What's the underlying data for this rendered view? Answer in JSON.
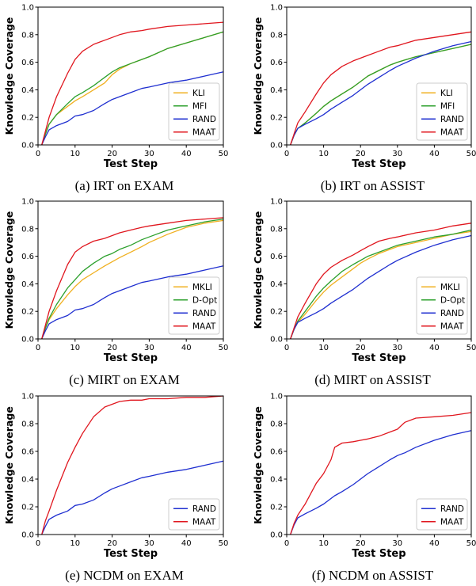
{
  "colors": {
    "KLI": "#f0b020",
    "MKLI": "#f0b020",
    "MFI": "#2ca02c",
    "D-Opt": "#2ca02c",
    "RAND": "#1f2fd0",
    "MAAT": "#e0161e"
  },
  "chart_data": [
    {
      "type": "line",
      "caption": "(a) IRT on EXAM",
      "xlabel": "Test Step",
      "ylabel": "Knowledge Coverage",
      "xlim": [
        0,
        50
      ],
      "ylim": [
        0,
        1.0
      ],
      "xticks": [
        "0",
        "10",
        "20",
        "30",
        "40",
        "50"
      ],
      "yticks": [
        "0.0",
        "0.2",
        "0.4",
        "0.6",
        "0.8",
        "1.0"
      ],
      "legend_position": "lower-right",
      "x": [
        1,
        2,
        3,
        5,
        8,
        10,
        12,
        15,
        18,
        20,
        22,
        25,
        28,
        30,
        35,
        40,
        45,
        50
      ],
      "series": [
        {
          "name": "KLI",
          "values": [
            0,
            0.08,
            0.15,
            0.22,
            0.28,
            0.32,
            0.35,
            0.4,
            0.45,
            0.51,
            0.55,
            0.59,
            0.62,
            0.64,
            0.7,
            0.74,
            0.78,
            0.82
          ]
        },
        {
          "name": "MFI",
          "values": [
            0,
            0.08,
            0.15,
            0.22,
            0.3,
            0.35,
            0.38,
            0.43,
            0.49,
            0.53,
            0.56,
            0.59,
            0.62,
            0.64,
            0.7,
            0.74,
            0.78,
            0.82
          ]
        },
        {
          "name": "RAND",
          "values": [
            0,
            0.06,
            0.11,
            0.14,
            0.17,
            0.21,
            0.22,
            0.25,
            0.3,
            0.33,
            0.35,
            0.38,
            0.41,
            0.42,
            0.45,
            0.47,
            0.5,
            0.53
          ]
        },
        {
          "name": "MAAT",
          "values": [
            0,
            0.1,
            0.2,
            0.35,
            0.52,
            0.62,
            0.68,
            0.73,
            0.76,
            0.78,
            0.8,
            0.82,
            0.83,
            0.84,
            0.86,
            0.87,
            0.88,
            0.89
          ]
        }
      ]
    },
    {
      "type": "line",
      "caption": "(b) IRT on ASSIST",
      "xlabel": "Test Step",
      "ylabel": "Knowledge Coverage",
      "xlim": [
        0,
        50
      ],
      "ylim": [
        0,
        1.0
      ],
      "xticks": [
        "0",
        "10",
        "20",
        "30",
        "40",
        "50"
      ],
      "yticks": [
        "0.0",
        "0.2",
        "0.4",
        "0.6",
        "0.8",
        "1.0"
      ],
      "legend_position": "lower-right",
      "x": [
        1,
        2,
        3,
        5,
        8,
        10,
        12,
        15,
        18,
        20,
        22,
        25,
        28,
        30,
        35,
        40,
        45,
        50
      ],
      "series": [
        {
          "name": "KLI",
          "values": [
            0,
            0.07,
            0.12,
            0.16,
            0.23,
            0.28,
            0.32,
            0.37,
            0.42,
            0.46,
            0.5,
            0.54,
            0.58,
            0.6,
            0.64,
            0.67,
            0.7,
            0.73
          ]
        },
        {
          "name": "MFI",
          "values": [
            0,
            0.07,
            0.12,
            0.16,
            0.23,
            0.28,
            0.32,
            0.37,
            0.42,
            0.46,
            0.5,
            0.54,
            0.58,
            0.6,
            0.64,
            0.67,
            0.7,
            0.73
          ]
        },
        {
          "name": "RAND",
          "values": [
            0,
            0.07,
            0.12,
            0.15,
            0.19,
            0.22,
            0.26,
            0.31,
            0.36,
            0.4,
            0.44,
            0.49,
            0.54,
            0.57,
            0.63,
            0.68,
            0.72,
            0.75
          ]
        },
        {
          "name": "MAAT",
          "values": [
            0,
            0.08,
            0.16,
            0.24,
            0.37,
            0.45,
            0.51,
            0.57,
            0.61,
            0.63,
            0.65,
            0.68,
            0.71,
            0.72,
            0.76,
            0.78,
            0.8,
            0.82
          ]
        }
      ]
    },
    {
      "type": "line",
      "caption": "(c) MIRT on EXAM",
      "xlabel": "Test Step",
      "ylabel": "Knowledge Coverage",
      "xlim": [
        0,
        50
      ],
      "ylim": [
        0,
        1.0
      ],
      "xticks": [
        "0",
        "10",
        "20",
        "30",
        "40",
        "50"
      ],
      "yticks": [
        "0.0",
        "0.2",
        "0.4",
        "0.6",
        "0.8",
        "1.0"
      ],
      "legend_position": "lower-right",
      "x": [
        1,
        2,
        3,
        5,
        8,
        10,
        12,
        15,
        18,
        20,
        22,
        25,
        28,
        30,
        35,
        40,
        45,
        50
      ],
      "series": [
        {
          "name": "MKLI",
          "values": [
            0,
            0.08,
            0.14,
            0.22,
            0.32,
            0.38,
            0.43,
            0.48,
            0.53,
            0.56,
            0.59,
            0.63,
            0.67,
            0.7,
            0.76,
            0.81,
            0.84,
            0.86
          ]
        },
        {
          "name": "D-Opt",
          "values": [
            0,
            0.08,
            0.15,
            0.25,
            0.37,
            0.43,
            0.49,
            0.55,
            0.6,
            0.62,
            0.65,
            0.68,
            0.72,
            0.74,
            0.79,
            0.82,
            0.85,
            0.87
          ]
        },
        {
          "name": "RAND",
          "values": [
            0,
            0.06,
            0.11,
            0.14,
            0.17,
            0.21,
            0.22,
            0.25,
            0.3,
            0.33,
            0.35,
            0.38,
            0.41,
            0.42,
            0.45,
            0.47,
            0.5,
            0.53
          ]
        },
        {
          "name": "MAAT",
          "values": [
            0,
            0.1,
            0.2,
            0.35,
            0.54,
            0.63,
            0.67,
            0.71,
            0.73,
            0.75,
            0.77,
            0.79,
            0.81,
            0.82,
            0.84,
            0.86,
            0.87,
            0.88
          ]
        }
      ]
    },
    {
      "type": "line",
      "caption": "(d) MIRT on ASSIST",
      "xlabel": "Test Step",
      "ylabel": "Knowledge Coverage",
      "xlim": [
        0,
        50
      ],
      "ylim": [
        0,
        1.0
      ],
      "xticks": [
        "0",
        "10",
        "20",
        "30",
        "40",
        "50"
      ],
      "yticks": [
        "0.0",
        "0.2",
        "0.4",
        "0.6",
        "0.8",
        "1.0"
      ],
      "legend_position": "lower-right",
      "x": [
        1,
        2,
        3,
        5,
        8,
        10,
        12,
        15,
        18,
        20,
        22,
        25,
        28,
        30,
        35,
        40,
        45,
        50
      ],
      "series": [
        {
          "name": "MKLI",
          "values": [
            0,
            0.07,
            0.12,
            0.18,
            0.28,
            0.34,
            0.39,
            0.45,
            0.51,
            0.55,
            0.58,
            0.62,
            0.65,
            0.67,
            0.7,
            0.73,
            0.76,
            0.78
          ]
        },
        {
          "name": "D-Opt",
          "values": [
            0,
            0.07,
            0.13,
            0.2,
            0.31,
            0.37,
            0.42,
            0.49,
            0.54,
            0.57,
            0.6,
            0.63,
            0.66,
            0.68,
            0.71,
            0.74,
            0.76,
            0.79
          ]
        },
        {
          "name": "RAND",
          "values": [
            0,
            0.07,
            0.12,
            0.15,
            0.19,
            0.22,
            0.26,
            0.31,
            0.36,
            0.4,
            0.44,
            0.49,
            0.54,
            0.57,
            0.63,
            0.68,
            0.72,
            0.75
          ]
        },
        {
          "name": "MAAT",
          "values": [
            0,
            0.08,
            0.16,
            0.26,
            0.4,
            0.47,
            0.52,
            0.57,
            0.61,
            0.64,
            0.67,
            0.71,
            0.73,
            0.74,
            0.77,
            0.79,
            0.82,
            0.84
          ]
        }
      ]
    },
    {
      "type": "line",
      "caption": "(e) NCDM on EXAM",
      "xlabel": "Test Step",
      "ylabel": "Knowledge Coverage",
      "xlim": [
        0,
        50
      ],
      "ylim": [
        0,
        1.0
      ],
      "xticks": [
        "0",
        "10",
        "20",
        "30",
        "40",
        "50"
      ],
      "yticks": [
        "0.0",
        "0.2",
        "0.4",
        "0.6",
        "0.8",
        "1.0"
      ],
      "legend_position": "lower-right",
      "x": [
        1,
        2,
        3,
        5,
        8,
        10,
        12,
        15,
        18,
        20,
        22,
        25,
        28,
        30,
        35,
        40,
        45,
        50
      ],
      "series": [
        {
          "name": "RAND",
          "values": [
            0,
            0.06,
            0.11,
            0.14,
            0.17,
            0.21,
            0.22,
            0.25,
            0.3,
            0.33,
            0.35,
            0.38,
            0.41,
            0.42,
            0.45,
            0.47,
            0.5,
            0.53
          ]
        },
        {
          "name": "MAAT",
          "values": [
            0,
            0.1,
            0.17,
            0.32,
            0.52,
            0.63,
            0.73,
            0.85,
            0.92,
            0.94,
            0.96,
            0.97,
            0.97,
            0.98,
            0.98,
            0.99,
            0.99,
            1.0
          ]
        }
      ]
    },
    {
      "type": "line",
      "caption": "(f) NCDM on ASSIST",
      "xlabel": "Test Step",
      "ylabel": "Knowledge Coverage",
      "xlim": [
        0,
        50
      ],
      "ylim": [
        0,
        1.0
      ],
      "xticks": [
        "0",
        "10",
        "20",
        "30",
        "40",
        "50"
      ],
      "yticks": [
        "0.0",
        "0.2",
        "0.4",
        "0.6",
        "0.8",
        "1.0"
      ],
      "legend_position": "lower-right",
      "x": [
        1,
        2,
        3,
        5,
        8,
        10,
        12,
        13,
        15,
        18,
        20,
        22,
        25,
        28,
        30,
        32,
        35,
        40,
        45,
        50
      ],
      "series": [
        {
          "name": "RAND",
          "values": [
            0,
            0.07,
            0.12,
            0.15,
            0.19,
            0.22,
            0.26,
            0.28,
            0.31,
            0.36,
            0.4,
            0.44,
            0.49,
            0.54,
            0.57,
            0.59,
            0.63,
            0.68,
            0.72,
            0.75
          ]
        },
        {
          "name": "MAAT",
          "values": [
            0,
            0.08,
            0.14,
            0.22,
            0.37,
            0.44,
            0.54,
            0.63,
            0.66,
            0.67,
            0.68,
            0.69,
            0.71,
            0.74,
            0.76,
            0.81,
            0.84,
            0.85,
            0.86,
            0.88
          ]
        }
      ]
    }
  ]
}
